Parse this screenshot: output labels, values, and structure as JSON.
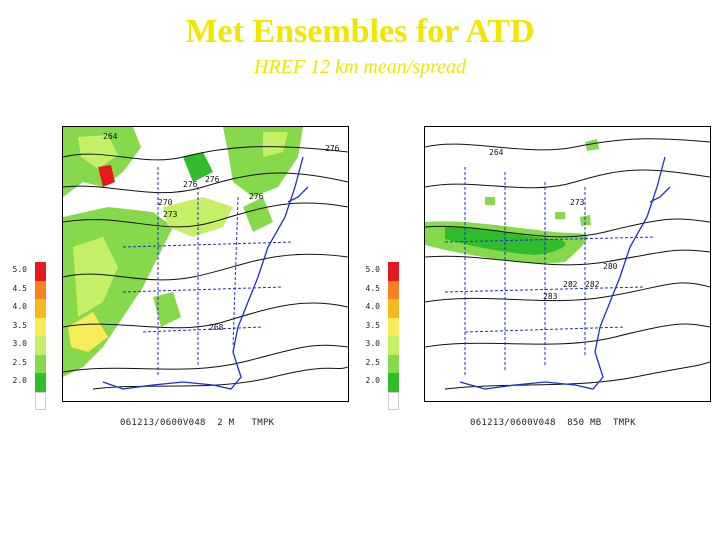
{
  "title": "Met Ensembles for ATD",
  "subtitle": "HREF 12 km mean/spread",
  "colorbar": {
    "levels": [
      {
        "label": "5.0",
        "color": "#e8191e"
      },
      {
        "label": "4.5",
        "color": "#f4821f"
      },
      {
        "label": "4.0",
        "color": "#f6b81e"
      },
      {
        "label": "3.5",
        "color": "#f6ec5a"
      },
      {
        "label": "3.0",
        "color": "#c6ef68"
      },
      {
        "label": "2.5",
        "color": "#86d94a"
      },
      {
        "label": "2.0",
        "color": "#2fbd2c"
      },
      {
        "label": "",
        "color": "#ffffff"
      }
    ]
  },
  "panels": [
    {
      "caption": "061213/0600V048  2 M   TMPK",
      "contour_labels": [
        "264",
        "276",
        "276",
        "270",
        "276",
        "276",
        "273",
        "268"
      ]
    },
    {
      "caption": "061213/0600V048  850 MB  TMPK",
      "contour_labels": [
        "264",
        "273",
        "280",
        "282",
        "282",
        "283"
      ]
    }
  ]
}
